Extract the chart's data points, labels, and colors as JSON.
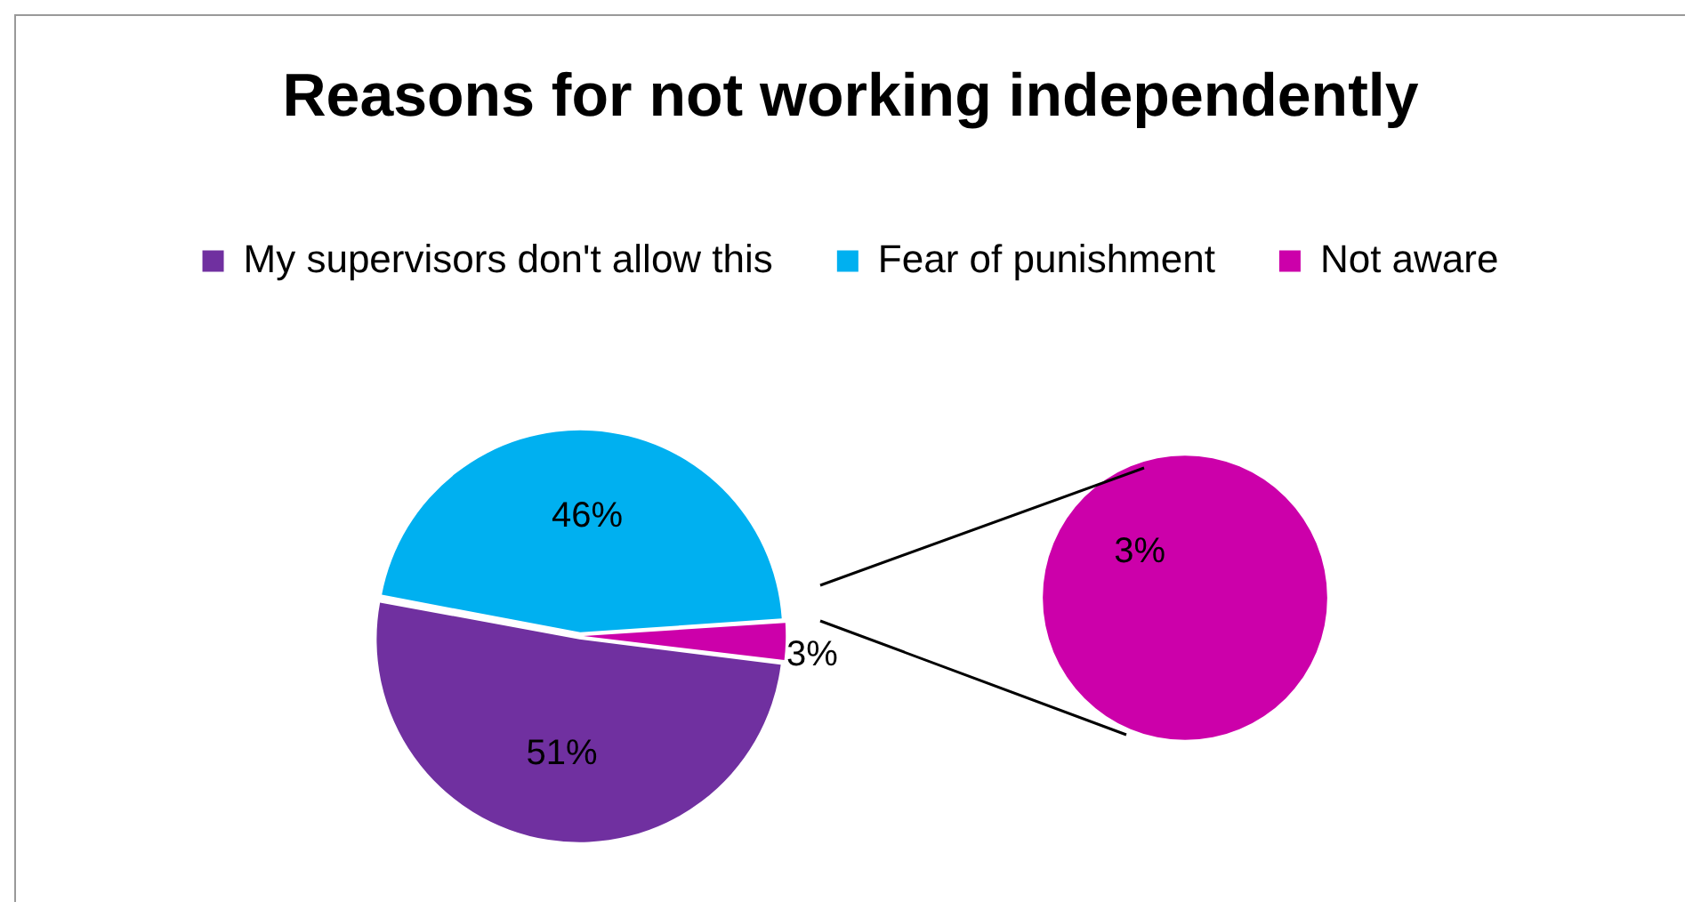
{
  "chart_data": [
    {
      "type": "pie",
      "title": "Reasons for not working independently",
      "categories": [
        "My supervisors don't allow this",
        "Fear of punishment",
        "Not aware"
      ],
      "values": [
        51,
        46,
        3
      ],
      "colors": [
        "#7030a0",
        "#00b0f0",
        "#cc00aa"
      ],
      "value_labels": [
        "51%",
        "46%",
        "3%"
      ],
      "legend": "top"
    },
    {
      "type": "pie",
      "categories": [
        null
      ],
      "values": [
        3
      ],
      "colors": [
        "#cc00aa"
      ],
      "value_labels": [
        "3%"
      ]
    }
  ]
}
